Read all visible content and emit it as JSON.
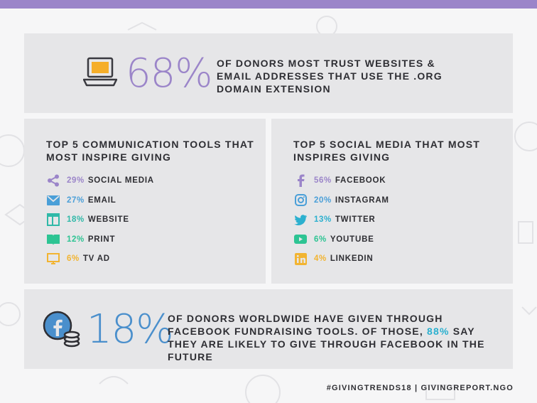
{
  "colors": {
    "accent_purple": "#9b85c9",
    "accent_blue": "#2bb0cf",
    "accent_teal": "#30b9a8",
    "accent_green": "#2dc493",
    "accent_yellow": "#f2b431",
    "text_dark": "#2e2e33",
    "panel_bg": "#e6e6e8"
  },
  "stat_top": {
    "icon": "laptop-icon",
    "percent": "68%",
    "text": "OF DONORS MOST TRUST WEBSITES & EMAIL ADDRESSES THAT USE THE .ORG DOMAIN EXTENSION"
  },
  "tools": {
    "title": "TOP 5 COMMUNICATION TOOLS THAT MOST INSPIRE GIVING",
    "items": [
      {
        "icon": "share-icon",
        "percent": "29%",
        "label": "SOCIAL MEDIA",
        "color": "#9b85c9"
      },
      {
        "icon": "email-icon",
        "percent": "27%",
        "label": "EMAIL",
        "color": "#4a9fd8"
      },
      {
        "icon": "website-icon",
        "percent": "18%",
        "label": "WEBSITE",
        "color": "#30b9a8"
      },
      {
        "icon": "book-icon",
        "percent": "12%",
        "label": "PRINT",
        "color": "#2dc493"
      },
      {
        "icon": "tv-icon",
        "percent": "6%",
        "label": "TV AD",
        "color": "#f2b431"
      }
    ]
  },
  "social": {
    "title": "TOP 5 SOCIAL MEDIA THAT MOST INSPIRES GIVING",
    "items": [
      {
        "icon": "facebook-icon",
        "percent": "56%",
        "label": "FACEBOOK",
        "color": "#9b85c9"
      },
      {
        "icon": "instagram-icon",
        "percent": "20%",
        "label": "INSTAGRAM",
        "color": "#4a9fd8"
      },
      {
        "icon": "twitter-icon",
        "percent": "13%",
        "label": "TWITTER",
        "color": "#2bb0cf"
      },
      {
        "icon": "youtube-icon",
        "percent": "6%",
        "label": "YOUTUBE",
        "color": "#2dc493"
      },
      {
        "icon": "linkedin-icon",
        "percent": "4%",
        "label": "LINKEDIN",
        "color": "#f2b431"
      }
    ]
  },
  "stat_bottom": {
    "icon": "facebook-coins-icon",
    "percent": "18%",
    "text_a": "OF DONORS WORLDWIDE HAVE GIVEN THROUGH FACEBOOK FUNDRAISING TOOLS. OF THOSE, ",
    "highlight": "88%",
    "text_b": " SAY THEY ARE LIKELY TO GIVE THROUGH FACEBOOK IN THE FUTURE"
  },
  "footer": "#GIVINGTRENDS18 | GIVINGREPORT.NGO"
}
